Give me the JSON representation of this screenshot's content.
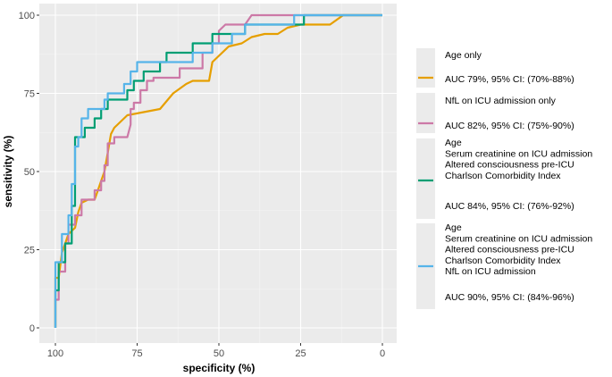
{
  "chart_data": {
    "type": "line",
    "title": "",
    "xlabel": "specificity (%)",
    "ylabel": "sensitivity (%)",
    "xlim": [
      100,
      0
    ],
    "ylim": [
      0,
      100
    ],
    "x_ticks": [
      100,
      75,
      50,
      25,
      0
    ],
    "y_ticks": [
      0,
      25,
      50,
      75,
      100
    ],
    "grid": true,
    "legend_position": "right",
    "series": [
      {
        "name_lines": [
          "Age only"
        ],
        "auc_label": "AUC 79%, 95% CI: (70%-88%)",
        "color": "#E69F00",
        "points": [
          [
            100,
            0
          ],
          [
            100,
            16
          ],
          [
            99,
            16
          ],
          [
            98,
            24
          ],
          [
            97,
            27
          ],
          [
            96,
            30
          ],
          [
            94,
            32
          ],
          [
            93,
            37
          ],
          [
            92,
            40
          ],
          [
            90,
            41
          ],
          [
            88,
            41
          ],
          [
            87,
            44
          ],
          [
            86,
            47
          ],
          [
            85,
            50
          ],
          [
            84,
            56
          ],
          [
            83,
            62
          ],
          [
            82,
            64
          ],
          [
            80,
            66
          ],
          [
            78,
            68
          ],
          [
            73,
            69
          ],
          [
            68,
            70
          ],
          [
            64,
            75
          ],
          [
            60,
            78
          ],
          [
            58,
            79
          ],
          [
            53,
            79
          ],
          [
            52,
            85
          ],
          [
            50,
            87
          ],
          [
            47,
            90
          ],
          [
            43,
            91
          ],
          [
            40,
            93
          ],
          [
            36,
            94
          ],
          [
            32,
            94
          ],
          [
            29,
            96
          ],
          [
            25,
            97
          ],
          [
            16,
            97
          ],
          [
            12,
            100
          ],
          [
            0,
            100
          ]
        ]
      },
      {
        "name_lines": [
          "NfL on ICU admission only"
        ],
        "auc_label": "AUC 82%, 95% CI: (75%-90%)",
        "color": "#CC79A7",
        "points": [
          [
            100,
            0
          ],
          [
            100,
            9
          ],
          [
            99,
            9
          ],
          [
            99,
            18
          ],
          [
            97,
            18
          ],
          [
            97,
            27
          ],
          [
            96,
            27
          ],
          [
            96,
            33
          ],
          [
            94,
            33
          ],
          [
            94,
            36
          ],
          [
            92,
            36
          ],
          [
            92,
            41
          ],
          [
            88,
            41
          ],
          [
            88,
            44
          ],
          [
            86,
            44
          ],
          [
            86,
            47
          ],
          [
            85,
            47
          ],
          [
            85,
            52
          ],
          [
            84,
            52
          ],
          [
            84,
            59
          ],
          [
            82,
            59
          ],
          [
            82,
            61
          ],
          [
            78,
            61
          ],
          [
            77,
            65
          ],
          [
            77,
            70
          ],
          [
            76,
            70
          ],
          [
            76,
            72
          ],
          [
            74,
            72
          ],
          [
            74,
            76
          ],
          [
            72,
            76
          ],
          [
            72,
            79
          ],
          [
            70,
            79
          ],
          [
            70,
            80
          ],
          [
            62,
            80
          ],
          [
            62,
            83
          ],
          [
            55,
            83
          ],
          [
            55,
            88
          ],
          [
            52,
            88
          ],
          [
            52,
            91
          ],
          [
            50,
            91
          ],
          [
            50,
            95
          ],
          [
            48,
            97
          ],
          [
            42,
            97
          ],
          [
            40,
            100
          ],
          [
            0,
            100
          ]
        ]
      },
      {
        "name_lines": [
          "Age",
          "Serum creatinine on ICU admission",
          "Altered consciousness pre-ICU",
          "Charlson Comorbidity Index"
        ],
        "auc_label": "AUC 84%, 95% CI: (76%-92%)",
        "color": "#009E73",
        "points": [
          [
            100,
            0
          ],
          [
            100,
            12
          ],
          [
            99,
            12
          ],
          [
            99,
            21
          ],
          [
            97,
            21
          ],
          [
            97,
            27
          ],
          [
            95,
            27
          ],
          [
            95,
            39
          ],
          [
            94,
            39
          ],
          [
            94,
            61
          ],
          [
            91,
            61
          ],
          [
            91,
            64
          ],
          [
            88,
            64
          ],
          [
            88,
            67
          ],
          [
            86,
            67
          ],
          [
            86,
            70
          ],
          [
            84,
            70
          ],
          [
            84,
            73
          ],
          [
            78,
            73
          ],
          [
            78,
            76
          ],
          [
            76,
            76
          ],
          [
            76,
            79
          ],
          [
            73,
            79
          ],
          [
            73,
            82
          ],
          [
            68,
            82
          ],
          [
            68,
            85
          ],
          [
            66,
            85
          ],
          [
            66,
            88
          ],
          [
            58,
            88
          ],
          [
            58,
            91
          ],
          [
            52,
            91
          ],
          [
            52,
            94
          ],
          [
            42,
            94
          ],
          [
            42,
            97
          ],
          [
            24,
            97
          ],
          [
            24,
            100
          ],
          [
            0,
            100
          ]
        ]
      },
      {
        "name_lines": [
          "Age",
          "Serum creatinine on ICU admission",
          "Altered consciousness pre-ICU",
          "Charlson Comorbidity Index",
          "NfL on ICU admission"
        ],
        "auc_label": "AUC 90%, 95% CI: (84%-96%)",
        "color": "#56B4E9",
        "points": [
          [
            100,
            0
          ],
          [
            100,
            21
          ],
          [
            98,
            21
          ],
          [
            98,
            30
          ],
          [
            96,
            30
          ],
          [
            96,
            36
          ],
          [
            95,
            36
          ],
          [
            95,
            46
          ],
          [
            94,
            46
          ],
          [
            94,
            58
          ],
          [
            93,
            58
          ],
          [
            93,
            61
          ],
          [
            92,
            61
          ],
          [
            92,
            67
          ],
          [
            90,
            67
          ],
          [
            90,
            70
          ],
          [
            85,
            70
          ],
          [
            85,
            73
          ],
          [
            84,
            73
          ],
          [
            84,
            75
          ],
          [
            79,
            75
          ],
          [
            79,
            78
          ],
          [
            77,
            78
          ],
          [
            77,
            82
          ],
          [
            75,
            82
          ],
          [
            75,
            85
          ],
          [
            58,
            85
          ],
          [
            58,
            88
          ],
          [
            52,
            88
          ],
          [
            52,
            91
          ],
          [
            46,
            91
          ],
          [
            46,
            94
          ],
          [
            42,
            94
          ],
          [
            42,
            97
          ],
          [
            27,
            97
          ],
          [
            27,
            100
          ],
          [
            0,
            100
          ]
        ]
      }
    ]
  }
}
